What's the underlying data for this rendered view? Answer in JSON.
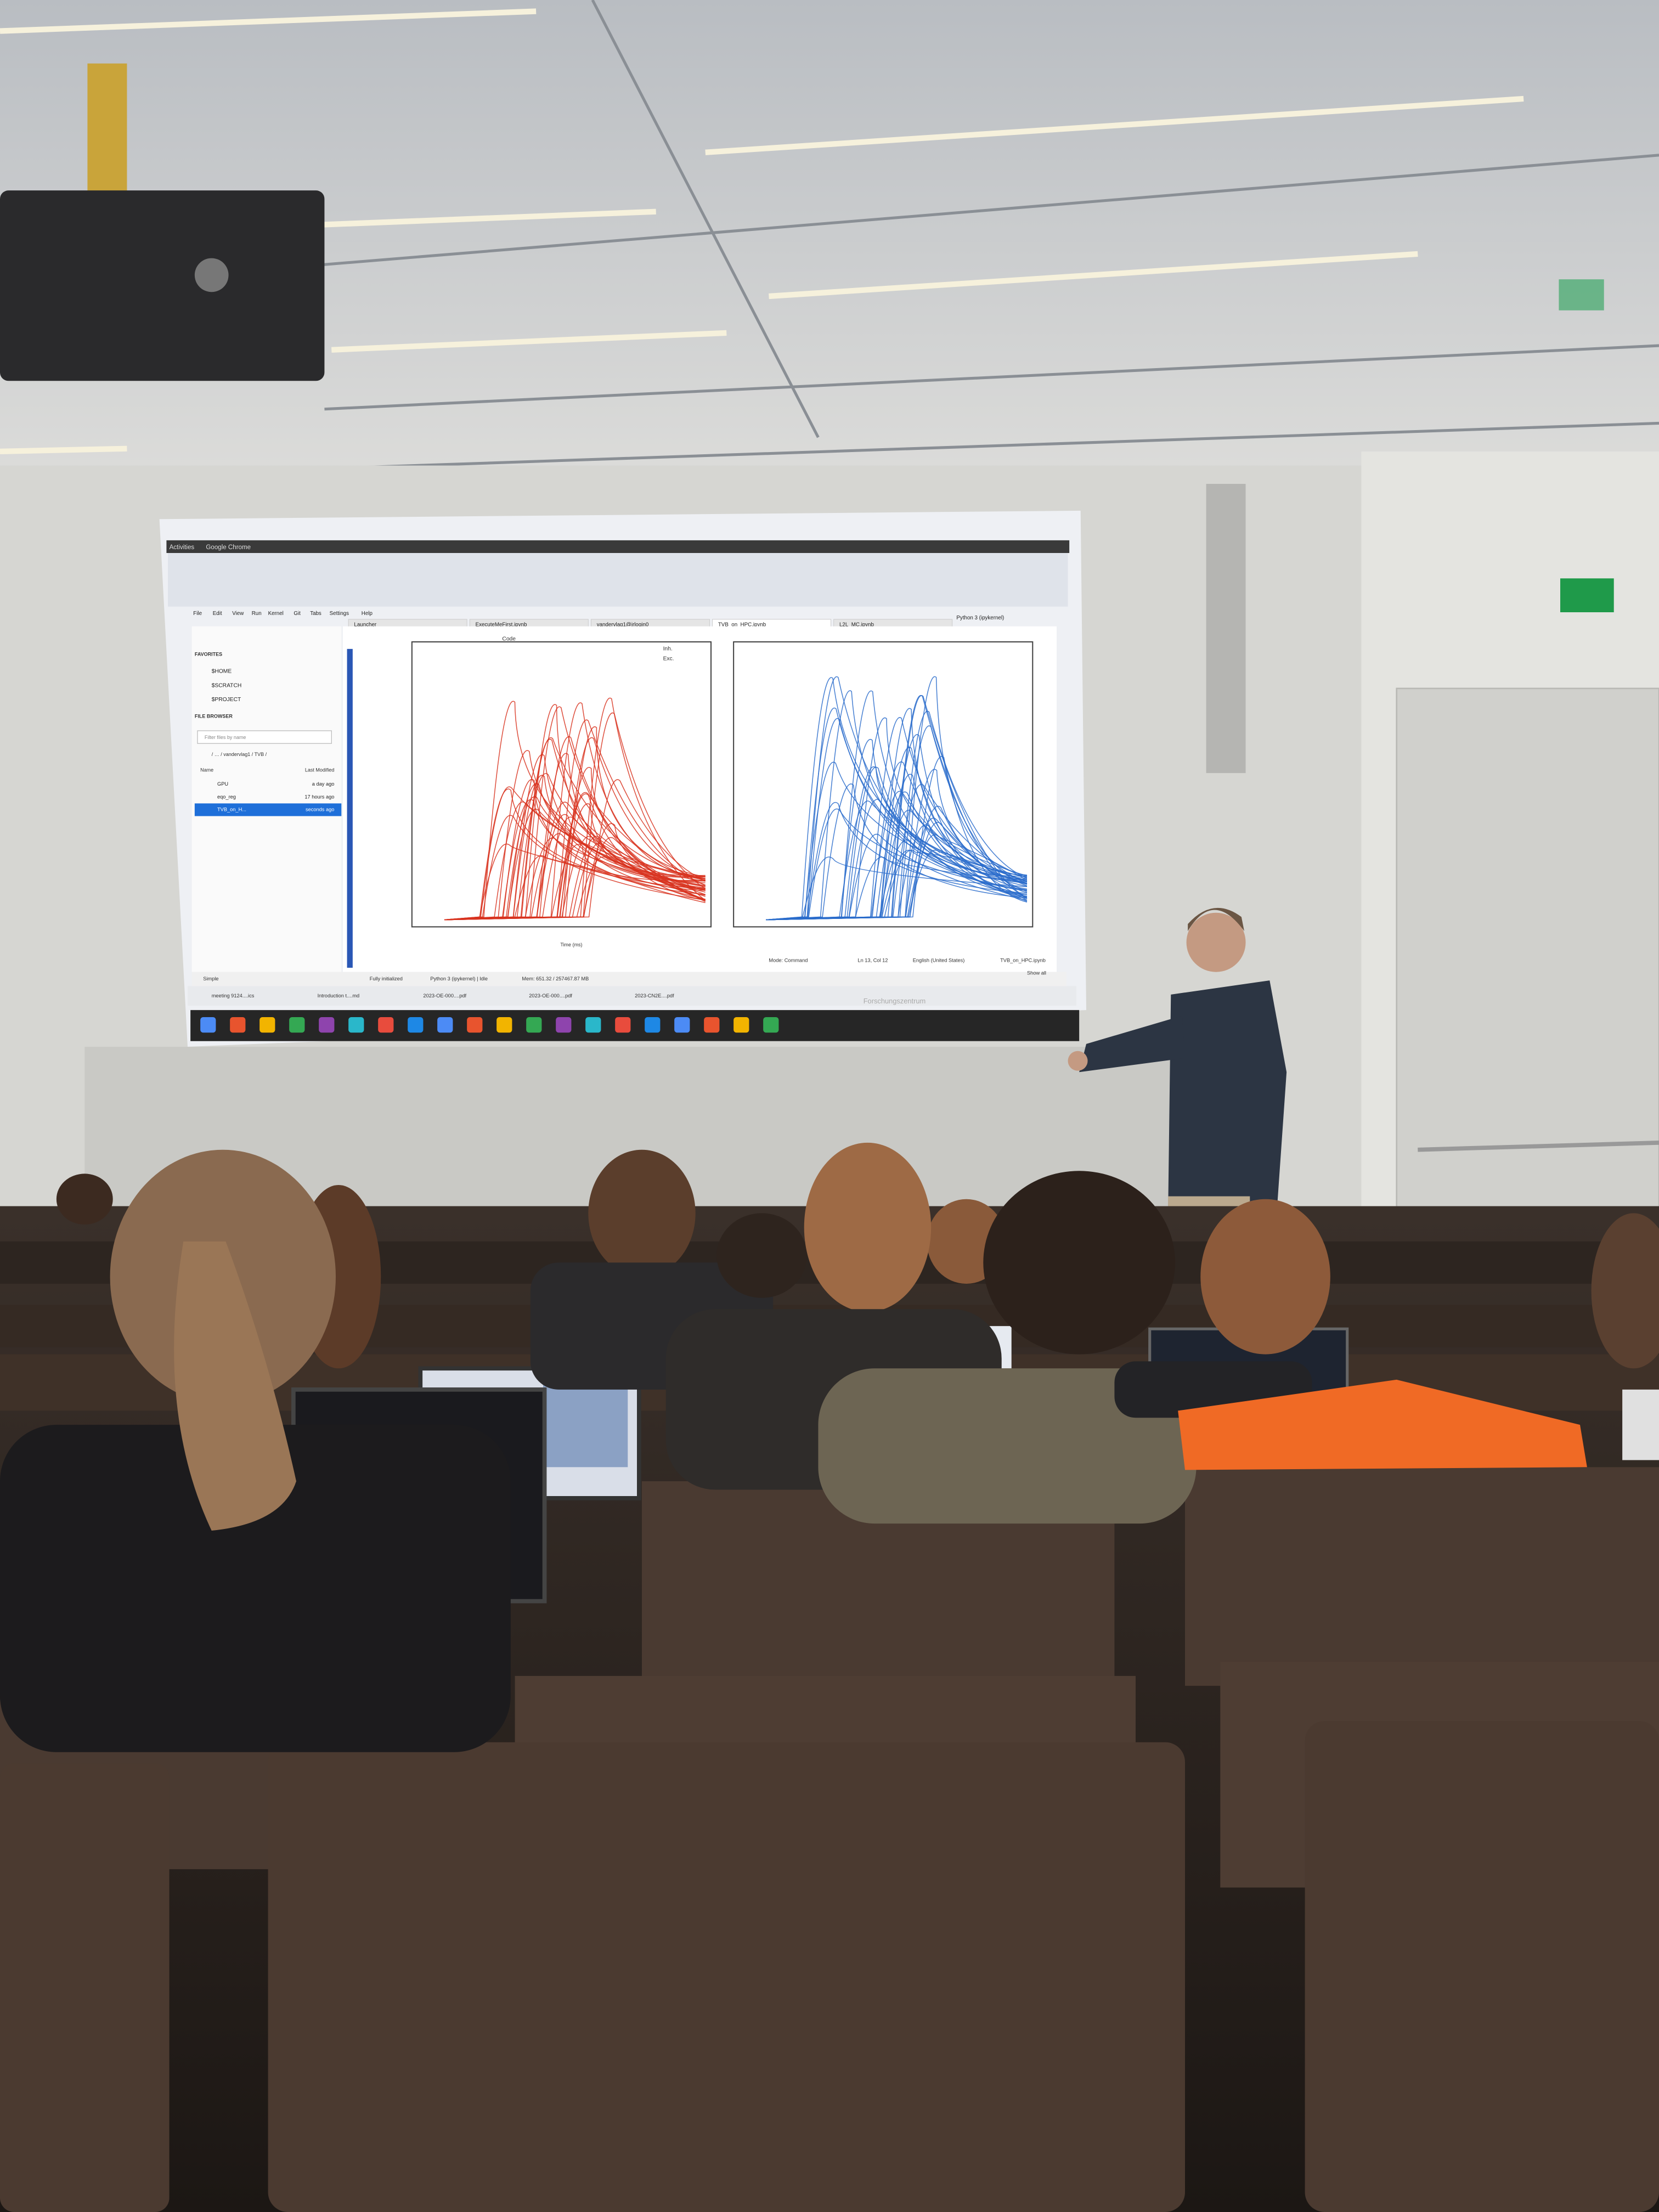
{
  "system_bar": {
    "activities": "Activities",
    "app": "Google Chrome"
  },
  "menu": [
    "File",
    "Edit",
    "View",
    "Run",
    "Kernel",
    "Git",
    "Tabs",
    "Settings",
    "Help"
  ],
  "tabs": [
    "Launcher",
    "ExecuteMeFirst.ipynb",
    "vandervlag1@jrlogin0",
    "TVB_on_HPC.ipynb",
    "L2L_MC.ipynb"
  ],
  "kernel": "Python 3 (ipykernel)",
  "cell_type": "Code",
  "sidebar": {
    "favorites_title": "FAVORITES",
    "favorites": [
      "$HOME",
      "$SCRATCH",
      "$PROJECT"
    ],
    "file_browser_title": "FILE BROWSER",
    "filter": "Filter files by name",
    "path": "/ … / vandervlag1 / TVB /",
    "columns": [
      "Name",
      "Last Modified"
    ],
    "files": [
      [
        "GPU",
        "a day ago"
      ],
      [
        "eqo_reg",
        "17 hours ago"
      ],
      [
        "TVB_on_H...",
        "seconds ago"
      ]
    ]
  },
  "legend": [
    "Inh.",
    "Exc."
  ],
  "x_axis_label": "Time (ms)",
  "status": {
    "left": [
      "Simple",
      "Fully initialized",
      "Python 3 (ipykernel) | Idle",
      "Mem: 651.32 / 257467.87 MB"
    ],
    "right": [
      "Mode: Command",
      "Ln 13, Col 12",
      "English (United States)",
      "TVB_on_HPC.ipynb"
    ]
  },
  "downloads": [
    "meeting 9124....ics",
    "Introduction t....md",
    "2023-OE-000....pdf",
    "2023-OE-000....pdf",
    "2023-CN2E....pdf"
  ],
  "show_all": "Show all",
  "watermark": "Forschungszentrum"
}
